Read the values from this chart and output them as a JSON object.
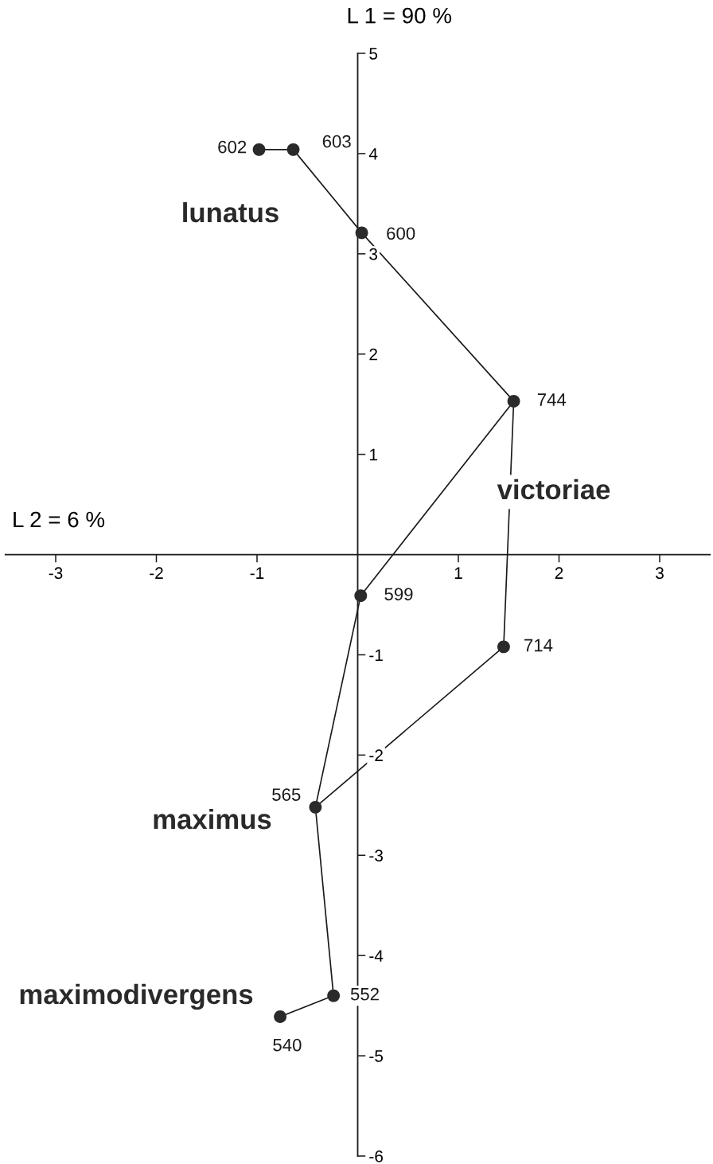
{
  "chart_data": {
    "type": "scatter",
    "xlabel": "L 2 = 6 %",
    "ylabel": "L 1 = 90 %",
    "xlim": [
      -3.5,
      3.5
    ],
    "ylim": [
      -6,
      5
    ],
    "xticks": [
      -3,
      -2,
      -1,
      1,
      2,
      3
    ],
    "yticks": [
      -6,
      -5,
      -4,
      -3,
      -2,
      -1,
      1,
      2,
      3,
      4,
      5
    ],
    "line_style": "solid",
    "series": [
      {
        "type": "line",
        "color": "#1a1a1a",
        "x": [
          -0.98,
          -0.64,
          0.04,
          1.55,
          1.45,
          -0.42,
          -0.24,
          -0.77
        ],
        "values": [
          4.04,
          4.04,
          3.21,
          1.53,
          -0.92,
          -2.52,
          -4.4,
          -4.61
        ]
      },
      {
        "type": "line",
        "color": "#1a1a1a",
        "x": [
          1.55,
          0.03,
          -0.42
        ],
        "values": [
          1.53,
          -0.41,
          -2.52
        ]
      },
      {
        "color": "#2a2a2a",
        "marker": "circle",
        "x": [
          -0.98,
          -0.64,
          0.04,
          1.55,
          0.03,
          1.45,
          -0.42,
          -0.24,
          -0.77
        ],
        "values": [
          4.04,
          4.04,
          3.21,
          1.53,
          -0.41,
          -0.92,
          -2.52,
          -4.4,
          -4.61
        ]
      }
    ],
    "annotations": [
      "lunatus",
      "victoriae",
      "maximus",
      "maximodivergens",
      {
        "text": "602",
        "x": -0.98,
        "y": 4.04
      },
      {
        "text": "603",
        "x": -0.64,
        "y": 4.04
      },
      {
        "text": "600",
        "x": 0.04,
        "y": 3.21
      },
      {
        "text": "744",
        "x": 1.55,
        "y": 1.53
      },
      {
        "text": "599",
        "x": 0.03,
        "y": -0.41
      },
      {
        "text": "714",
        "x": 1.45,
        "y": -0.92
      },
      {
        "text": "565",
        "x": -0.42,
        "y": -2.52
      },
      {
        "text": "552",
        "x": -0.24,
        "y": -4.4
      },
      {
        "text": "540",
        "x": -0.77,
        "y": -4.61
      }
    ]
  }
}
